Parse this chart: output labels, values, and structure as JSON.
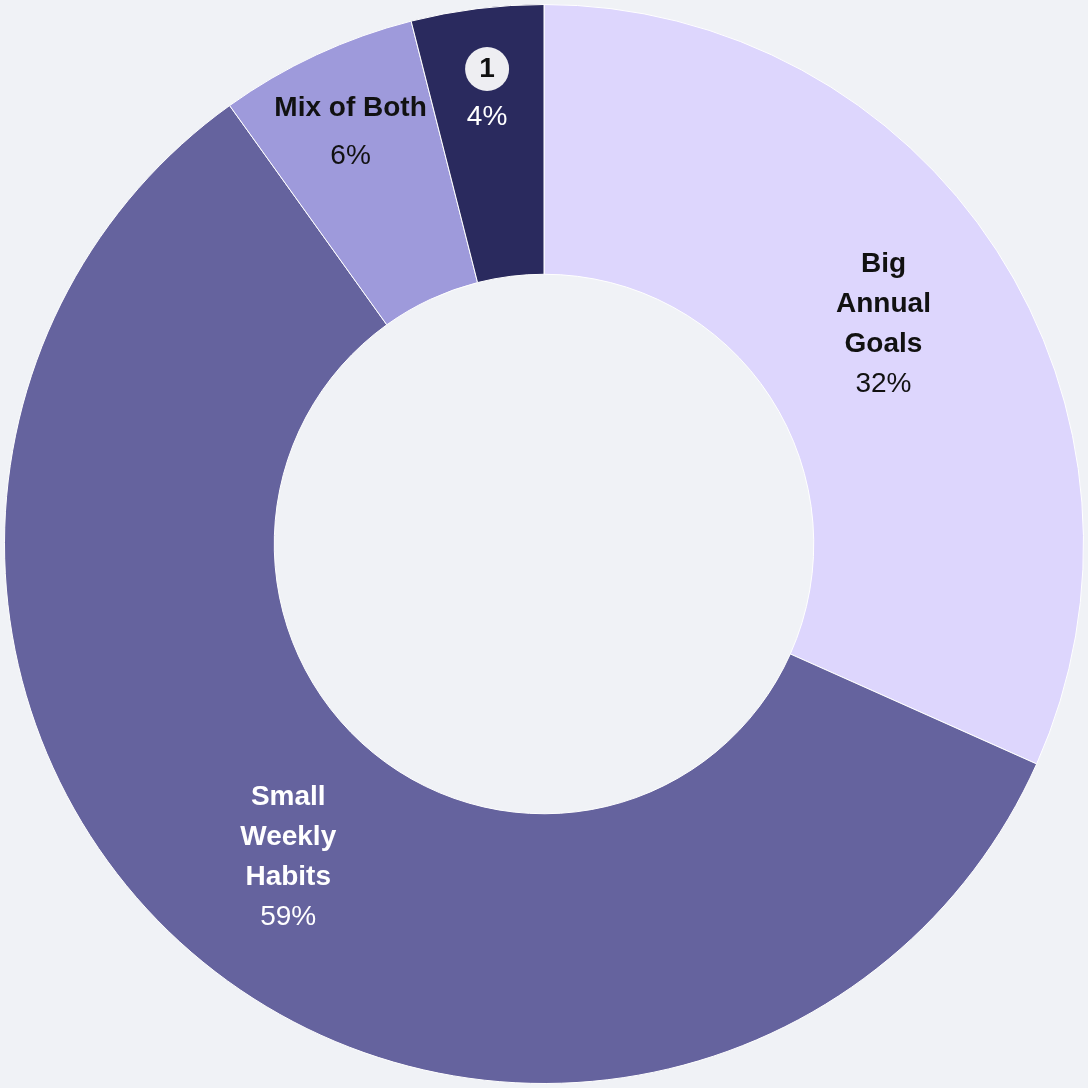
{
  "chart_data": {
    "type": "donut",
    "categories": [
      "Big Annual Goals",
      "Small Weekly Habits",
      "Mix of Both",
      "1"
    ],
    "values": [
      32,
      59,
      6,
      4
    ],
    "value_labels": [
      "32%",
      "59%",
      "6%",
      "4%"
    ],
    "colors": [
      "#ddd6fd",
      "#65639e",
      "#9e9adb",
      "#2a2a5e"
    ],
    "legend": false
  }
}
